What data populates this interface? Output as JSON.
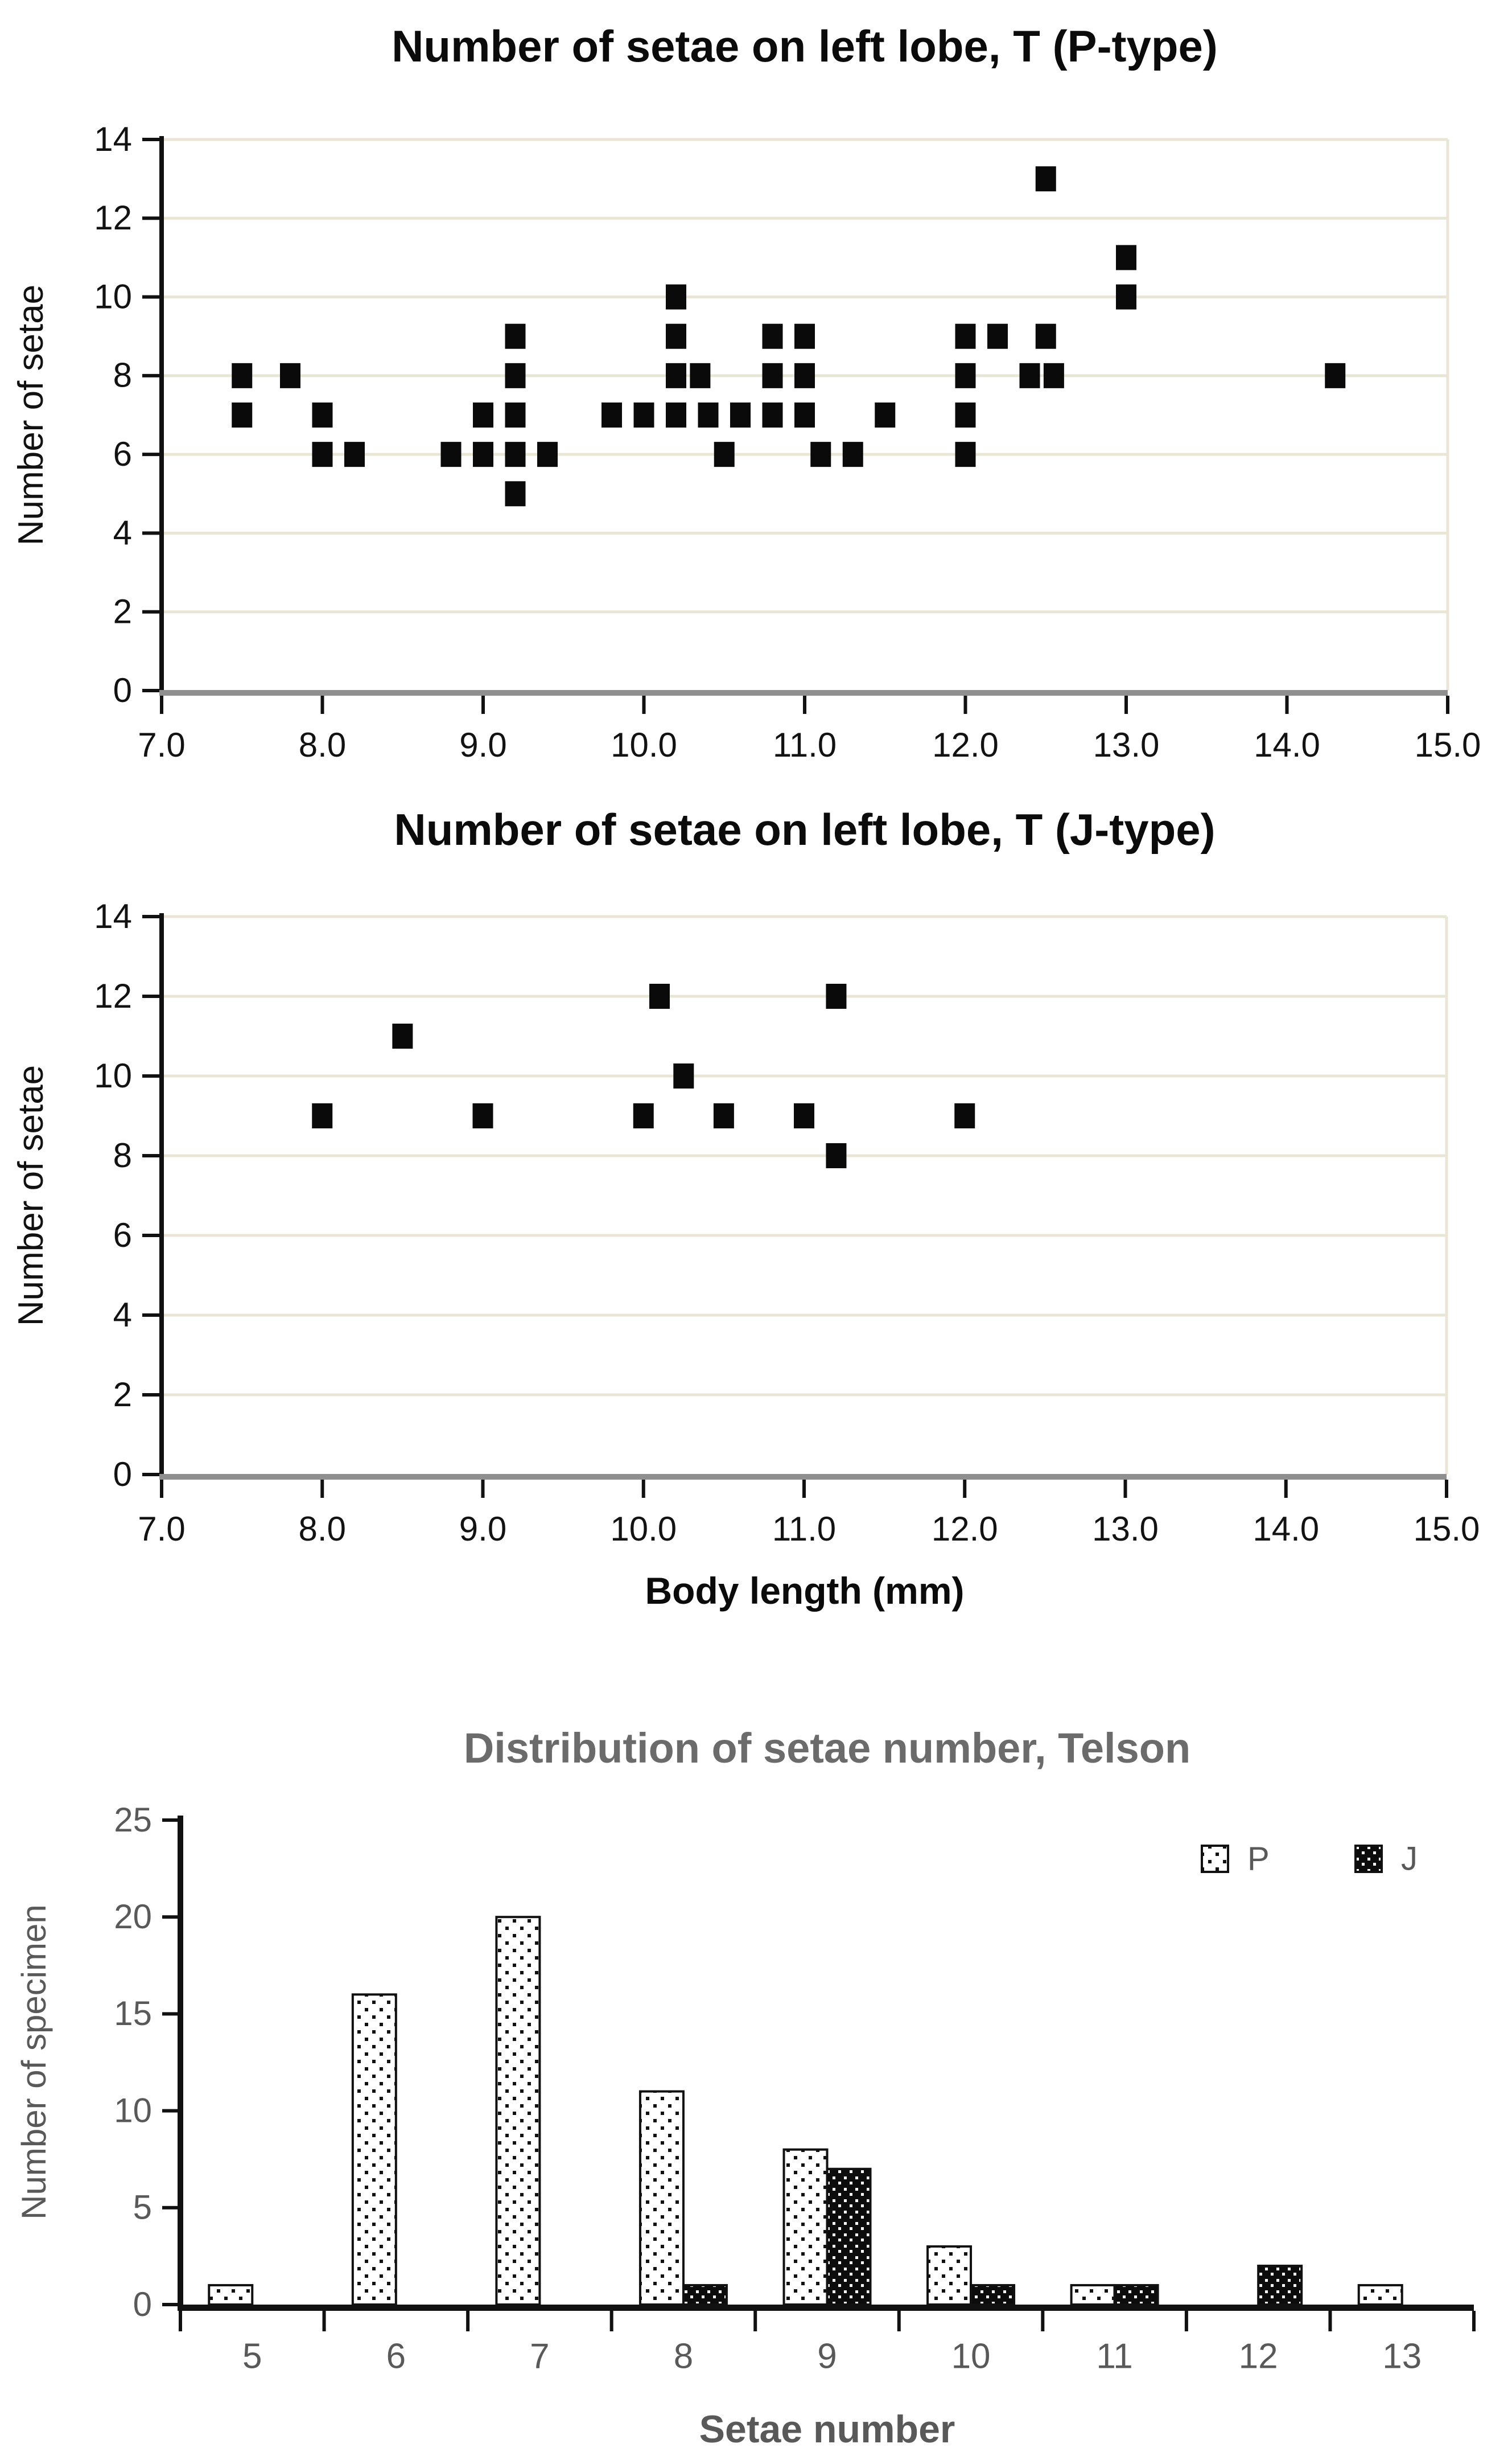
{
  "colors": {
    "grid": "#eae6d5",
    "axis_gray": "#8f8f8f",
    "axis_black": "#111111",
    "marker_black": "#0a0a0a",
    "tick_text_black": "#121212",
    "gray_text": "#595959",
    "title_gray": "#6b6b6b"
  },
  "chart_data": [
    {
      "type": "scatter",
      "title": "Number of setae on left lobe, T (P-type)",
      "xlabel": "",
      "ylabel": "Number of setae",
      "xlim": [
        7.0,
        15.0
      ],
      "ylim": [
        0,
        14
      ],
      "xticks": [
        "7.0",
        "8.0",
        "9.0",
        "10.0",
        "11.0",
        "12.0",
        "13.0",
        "14.0",
        "15.0"
      ],
      "yticks": [
        0,
        2,
        4,
        6,
        8,
        10,
        12,
        14
      ],
      "grid": true,
      "legend_position": "none",
      "points": [
        [
          7.5,
          7
        ],
        [
          7.5,
          8
        ],
        [
          7.8,
          8
        ],
        [
          8.0,
          6
        ],
        [
          8.0,
          7
        ],
        [
          8.2,
          6
        ],
        [
          8.8,
          6
        ],
        [
          9.0,
          6
        ],
        [
          9.0,
          7
        ],
        [
          9.2,
          5
        ],
        [
          9.2,
          6
        ],
        [
          9.2,
          7
        ],
        [
          9.2,
          8
        ],
        [
          9.2,
          9
        ],
        [
          9.4,
          6
        ],
        [
          9.8,
          7
        ],
        [
          10.0,
          7
        ],
        [
          10.2,
          7
        ],
        [
          10.2,
          8
        ],
        [
          10.2,
          9
        ],
        [
          10.2,
          10
        ],
        [
          10.35,
          8
        ],
        [
          10.4,
          7
        ],
        [
          10.5,
          6
        ],
        [
          10.6,
          7
        ],
        [
          10.8,
          7
        ],
        [
          10.8,
          8
        ],
        [
          10.8,
          9
        ],
        [
          11.0,
          7
        ],
        [
          11.0,
          8
        ],
        [
          11.0,
          9
        ],
        [
          11.1,
          6
        ],
        [
          11.3,
          6
        ],
        [
          11.5,
          7
        ],
        [
          12.0,
          6
        ],
        [
          12.0,
          7
        ],
        [
          12.0,
          8
        ],
        [
          12.0,
          9
        ],
        [
          12.2,
          9
        ],
        [
          12.4,
          8
        ],
        [
          12.5,
          9
        ],
        [
          12.5,
          13
        ],
        [
          12.55,
          8
        ],
        [
          13.0,
          10
        ],
        [
          13.0,
          11
        ],
        [
          14.3,
          8
        ]
      ]
    },
    {
      "type": "scatter",
      "title": "Number of setae on left lobe, T (J-type)",
      "xlabel": "Body length (mm)",
      "ylabel": "Number of setae",
      "xlim": [
        7.0,
        15.0
      ],
      "ylim": [
        0,
        14
      ],
      "xticks": [
        "7.0",
        "8.0",
        "9.0",
        "10.0",
        "11.0",
        "12.0",
        "13.0",
        "14.0",
        "15.0"
      ],
      "yticks": [
        0,
        2,
        4,
        6,
        8,
        10,
        12,
        14
      ],
      "grid": true,
      "legend_position": "none",
      "points": [
        [
          8.0,
          9
        ],
        [
          8.5,
          11
        ],
        [
          9.0,
          9
        ],
        [
          10.0,
          9
        ],
        [
          10.1,
          12
        ],
        [
          10.25,
          10
        ],
        [
          10.5,
          9
        ],
        [
          11.0,
          9
        ],
        [
          11.2,
          8
        ],
        [
          11.2,
          12
        ],
        [
          12.0,
          9
        ]
      ]
    },
    {
      "type": "bar",
      "title": "Distribution of setae number, Telson",
      "xlabel": "Setae number",
      "ylabel": "Number of specimen",
      "categories": [
        "5",
        "6",
        "7",
        "8",
        "9",
        "10",
        "11",
        "12",
        "13"
      ],
      "ylim": [
        0,
        25
      ],
      "yticks": [
        0,
        5,
        10,
        15,
        20,
        25
      ],
      "grid": false,
      "legend_position": "top-right",
      "series": [
        {
          "name": "P",
          "pattern": "dots-on-white",
          "values": [
            1,
            16,
            20,
            11,
            8,
            3,
            1,
            0,
            1
          ]
        },
        {
          "name": "J",
          "pattern": "dots-on-black",
          "values": [
            0,
            0,
            0,
            1,
            7,
            1,
            1,
            2,
            0
          ]
        }
      ]
    }
  ]
}
